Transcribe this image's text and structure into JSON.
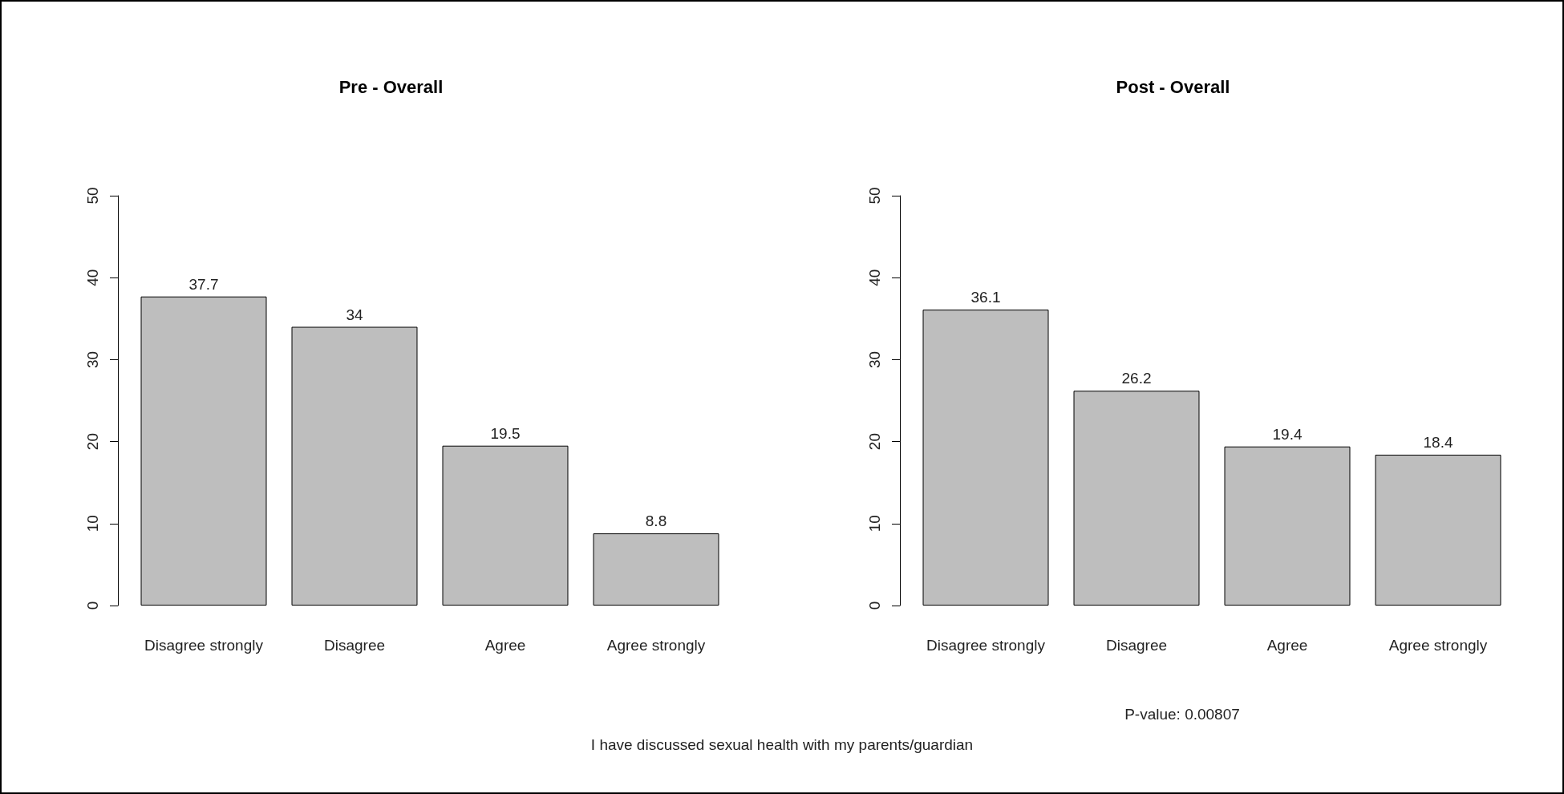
{
  "chart_data": [
    {
      "type": "bar",
      "title": "Pre - Overall",
      "categories": [
        "Disagree strongly",
        "Disagree",
        "Agree",
        "Agree strongly"
      ],
      "values": [
        37.7,
        34,
        19.5,
        8.8
      ],
      "color": "#bebebe",
      "ylim": [
        0,
        50
      ],
      "yticks": [
        0,
        10,
        20,
        30,
        40,
        50
      ],
      "data_labels": true,
      "annotations": [
        "I have discussed sexual health with my parents/guardian"
      ]
    },
    {
      "type": "bar",
      "title": "Post - Overall",
      "categories": [
        "Disagree strongly",
        "Disagree",
        "Agree",
        "Agree strongly"
      ],
      "values": [
        36.1,
        26.2,
        19.4,
        18.4
      ],
      "color": "#bebebe",
      "ylim": [
        0,
        50
      ],
      "yticks": [
        0,
        10,
        20,
        30,
        40,
        50
      ],
      "data_labels": true,
      "annotations": [
        "P-value: 0.00807"
      ]
    }
  ]
}
